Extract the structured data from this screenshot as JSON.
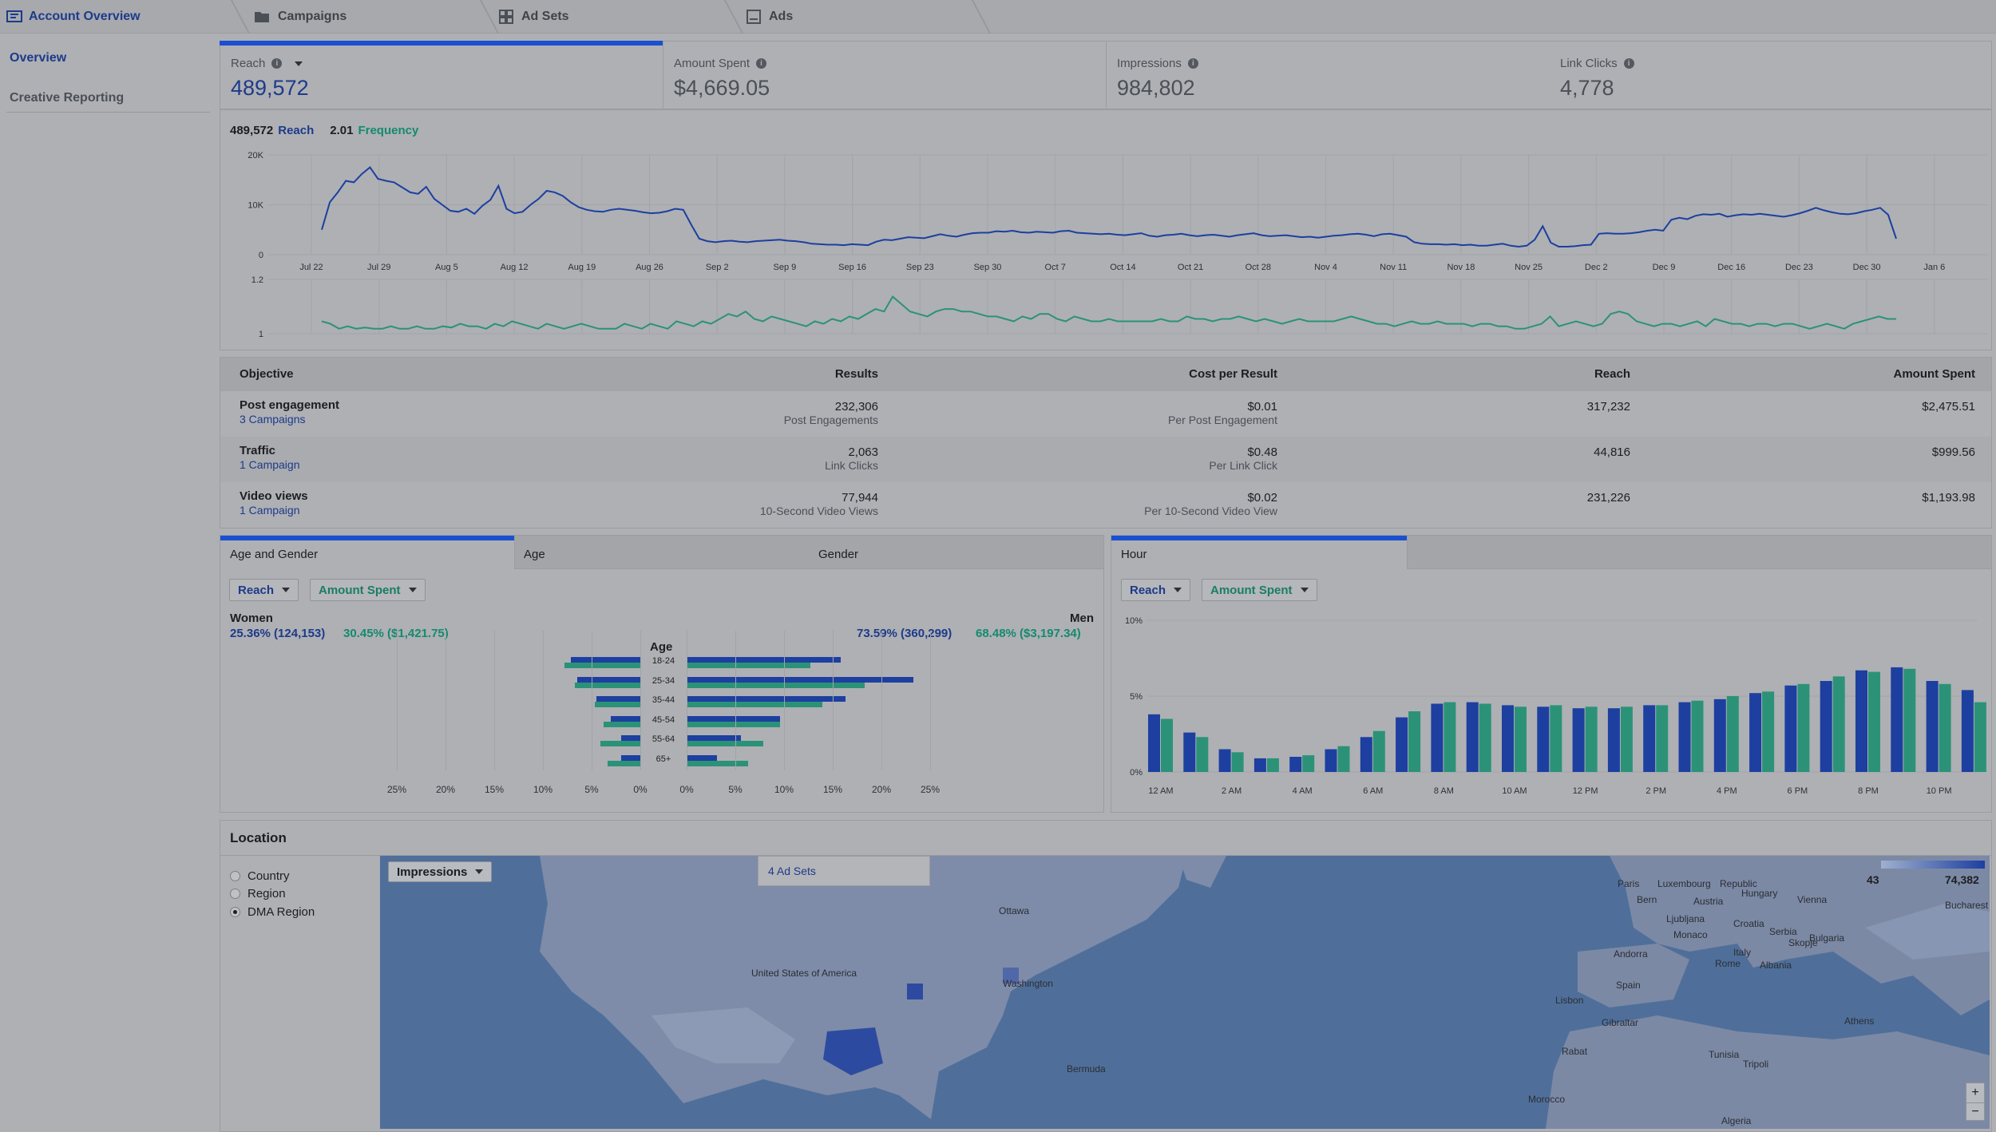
{
  "colors": {
    "reach": "#1e3a8a",
    "reach_bar": "#1d3fa0",
    "frequency": "#148a6f",
    "green_bar": "#2b9278",
    "accent_bar": "#1a4fd1"
  },
  "topnav": {
    "account_overview": "Account Overview",
    "tabs": [
      {
        "label": "Campaigns",
        "icon": "folder-icon"
      },
      {
        "label": "Ad Sets",
        "icon": "grid-icon"
      },
      {
        "label": "Ads",
        "icon": "ad-icon"
      }
    ]
  },
  "sidebar": {
    "items": [
      "Overview",
      "Creative Reporting"
    ]
  },
  "kpis": [
    {
      "label": "Reach",
      "value": "489,572"
    },
    {
      "label": "Amount Spent",
      "value": "$4,669.05"
    },
    {
      "label": "Impressions",
      "value": "984,802"
    },
    {
      "label": "Link Clicks",
      "value": "4,778"
    }
  ],
  "summary": {
    "reach_value": "489,572",
    "reach_label": "Reach",
    "freq_value": "2.01",
    "freq_label": "Frequency"
  },
  "chart_data": [
    {
      "type": "line",
      "series_label": "Reach",
      "x_ticks": [
        "Jul 22",
        "Jul 29",
        "Aug 5",
        "Aug 12",
        "Aug 19",
        "Aug 26",
        "Sep 2",
        "Sep 9",
        "Sep 16",
        "Sep 23",
        "Sep 30",
        "Oct 7",
        "Oct 14",
        "Oct 21",
        "Oct 28",
        "Nov 4",
        "Nov 11",
        "Nov 18",
        "Nov 25",
        "Dec 2",
        "Dec 9",
        "Dec 16",
        "Dec 23",
        "Dec 30",
        "Jan 6"
      ],
      "y_ticks": [
        "20K",
        "10K",
        "0"
      ],
      "ylim": [
        0,
        20000
      ],
      "values": [
        5000,
        10500,
        12500,
        14800,
        14500,
        16200,
        17500,
        15200,
        14800,
        14500,
        13500,
        12500,
        12200,
        13600,
        11200,
        10000,
        8800,
        8600,
        9200,
        8200,
        9800,
        11000,
        13800,
        9200,
        8300,
        8600,
        10000,
        11200,
        12800,
        12500,
        11800,
        10500,
        9500,
        9000,
        8700,
        8600,
        9000,
        9200,
        9000,
        8800,
        8500,
        8300,
        8400,
        8700,
        9200,
        9000,
        6000,
        3200,
        2700,
        2500,
        2700,
        2800,
        2600,
        2500,
        2700,
        2800,
        2900,
        3000,
        2800,
        2700,
        2500,
        2200,
        2100,
        2000,
        2000,
        1900,
        2100,
        2000,
        1900,
        2600,
        3000,
        2900,
        3200,
        3500,
        3400,
        3300,
        3700,
        4100,
        3800,
        3600,
        4000,
        4300,
        4400,
        4400,
        4700,
        4600,
        4800,
        4500,
        4400,
        4600,
        4500,
        4400,
        4700,
        4800,
        4400,
        4300,
        4200,
        4100,
        4200,
        4000,
        3900,
        4100,
        4300,
        3800,
        3600,
        3900,
        4000,
        4200,
        3900,
        3700,
        3900,
        4000,
        3800,
        3600,
        3900,
        4100,
        4300,
        3900,
        3700,
        3800,
        3900,
        3700,
        3500,
        3600,
        3400,
        3600,
        3800,
        3900,
        4100,
        4200,
        4000,
        3700,
        4100,
        4200,
        3900,
        3600,
        2500,
        2200,
        2100,
        2100,
        2000,
        2100,
        1900,
        2000,
        1800,
        1800,
        2000,
        2200,
        1800,
        1600,
        1800,
        3000,
        5700,
        2400,
        1600,
        1600,
        1700,
        1900,
        2000,
        4200,
        4300,
        4200,
        4200,
        4300,
        4500,
        4800,
        5000,
        4800,
        7000,
        7400,
        7100,
        7800,
        8100,
        8000,
        8200,
        7600,
        7900,
        8100,
        8000,
        8200,
        8000,
        7800,
        7600,
        7900,
        8300,
        8800,
        9400,
        8900,
        8500,
        8200,
        8100,
        8300,
        8700,
        9000,
        9400,
        8000,
        3200
      ]
    },
    {
      "type": "line",
      "series_label": "Frequency",
      "y_ticks": [
        "1.2",
        "1"
      ],
      "ylim": [
        0.98,
        1.2
      ],
      "values": [
        1.03,
        1.02,
        1.0,
        1.01,
        1.0,
        1.005,
        1.0,
        1.0,
        1.01,
        1.0,
        1.0,
        1.01,
        1.0,
        1.0,
        1.01,
        1.005,
        1.02,
        1.01,
        1.01,
        1.0,
        1.02,
        1.01,
        1.03,
        1.02,
        1.01,
        1.0,
        1.02,
        1.01,
        1.0,
        1.01,
        1.02,
        1.01,
        1.0,
        1.0,
        1.0,
        1.02,
        1.01,
        1.0,
        1.02,
        1.01,
        1.0,
        1.03,
        1.02,
        1.01,
        1.03,
        1.02,
        1.04,
        1.06,
        1.05,
        1.07,
        1.04,
        1.03,
        1.05,
        1.04,
        1.03,
        1.02,
        1.01,
        1.03,
        1.02,
        1.04,
        1.03,
        1.05,
        1.04,
        1.06,
        1.08,
        1.07,
        1.13,
        1.1,
        1.07,
        1.06,
        1.05,
        1.07,
        1.08,
        1.08,
        1.07,
        1.07,
        1.06,
        1.05,
        1.05,
        1.04,
        1.03,
        1.05,
        1.04,
        1.06,
        1.06,
        1.04,
        1.03,
        1.05,
        1.04,
        1.03,
        1.03,
        1.04,
        1.03,
        1.03,
        1.03,
        1.03,
        1.03,
        1.04,
        1.03,
        1.03,
        1.05,
        1.04,
        1.04,
        1.03,
        1.04,
        1.04,
        1.05,
        1.04,
        1.03,
        1.04,
        1.03,
        1.02,
        1.03,
        1.04,
        1.03,
        1.03,
        1.03,
        1.03,
        1.04,
        1.05,
        1.04,
        1.03,
        1.02,
        1.02,
        1.01,
        1.02,
        1.03,
        1.02,
        1.02,
        1.03,
        1.02,
        1.02,
        1.02,
        1.01,
        1.02,
        1.02,
        1.01,
        1.01,
        1.0,
        1.0,
        1.01,
        1.02,
        1.05,
        1.01,
        1.02,
        1.03,
        1.02,
        1.01,
        1.02,
        1.06,
        1.07,
        1.06,
        1.03,
        1.02,
        1.01,
        1.02,
        1.02,
        1.01,
        1.02,
        1.03,
        1.01,
        1.04,
        1.03,
        1.02,
        1.02,
        1.01,
        1.02,
        1.02,
        1.01,
        1.02,
        1.02,
        1.01,
        1.0,
        1.01,
        1.02,
        1.01,
        1.0,
        1.02,
        1.03,
        1.04,
        1.05,
        1.04,
        1.04
      ]
    },
    {
      "type": "bar",
      "orientation": "horizontal",
      "categories": [
        "18-24",
        "25-34",
        "35-44",
        "45-54",
        "55-64",
        "65+"
      ],
      "xlim": [
        0,
        25
      ],
      "x_ticks": [
        "25%",
        "20%",
        "15%",
        "10%",
        "5%",
        "0%",
        "0%",
        "5%",
        "10%",
        "15%",
        "20%",
        "25%"
      ],
      "women": {
        "reach_pct": [
          7.1,
          6.5,
          4.5,
          3.0,
          2.0,
          2.0
        ],
        "spent_pct": [
          7.8,
          6.7,
          4.7,
          3.8,
          4.1,
          3.4
        ]
      },
      "men": {
        "reach_pct": [
          15.8,
          23.3,
          16.3,
          9.6,
          5.6,
          3.1
        ],
        "spent_pct": [
          12.7,
          18.3,
          13.9,
          9.6,
          7.9,
          6.3
        ]
      }
    },
    {
      "type": "bar",
      "categories": [
        "12 AM",
        "1 AM",
        "2 AM",
        "3 AM",
        "4 AM",
        "5 AM",
        "6 AM",
        "7 AM",
        "8 AM",
        "9 AM",
        "10 AM",
        "11 AM",
        "12 PM",
        "1 PM",
        "2 PM",
        "3 PM",
        "4 PM",
        "5 PM",
        "6 PM",
        "7 PM",
        "8 PM",
        "9 PM",
        "10 PM",
        "11 PM"
      ],
      "x_ticks": [
        "12 AM",
        "2 AM",
        "4 AM",
        "6 AM",
        "8 AM",
        "10 AM",
        "12 PM",
        "2 PM",
        "4 PM",
        "6 PM",
        "8 PM",
        "10 PM"
      ],
      "y_ticks": [
        "10%",
        "5%",
        "0%"
      ],
      "ylim": [
        0,
        10
      ],
      "series": [
        {
          "name": "Reach",
          "values": [
            3.8,
            2.6,
            1.5,
            0.9,
            1.0,
            1.5,
            2.3,
            3.6,
            4.5,
            4.6,
            4.4,
            4.3,
            4.2,
            4.2,
            4.4,
            4.6,
            4.8,
            5.2,
            5.7,
            6.0,
            6.7,
            6.9,
            6.0,
            5.4
          ]
        },
        {
          "name": "Amount Spent",
          "values": [
            3.5,
            2.3,
            1.3,
            0.9,
            1.1,
            1.7,
            2.7,
            4.0,
            4.6,
            4.5,
            4.3,
            4.4,
            4.3,
            4.3,
            4.4,
            4.7,
            5.0,
            5.3,
            5.8,
            6.3,
            6.6,
            6.8,
            5.8,
            4.6
          ]
        }
      ]
    }
  ],
  "table": {
    "headers": [
      "Objective",
      "Results",
      "Cost per Result",
      "Reach",
      "Amount Spent"
    ],
    "rows": [
      {
        "objective": "Post engagement",
        "campaigns": "3 Campaigns",
        "results": "232,306",
        "results_sub": "Post Engagements",
        "cpr": "$0.01",
        "cpr_sub": "Per Post Engagement",
        "reach": "317,232",
        "spent": "$2,475.51"
      },
      {
        "objective": "Traffic",
        "campaigns": "1 Campaign",
        "results": "2,063",
        "results_sub": "Link Clicks",
        "cpr": "$0.48",
        "cpr_sub": "Per Link Click",
        "reach": "44,816",
        "spent": "$999.56"
      },
      {
        "objective": "Video views",
        "campaigns": "1 Campaign",
        "results": "77,944",
        "results_sub": "10-Second Video Views",
        "cpr": "$0.02",
        "cpr_sub": "Per 10-Second Video View",
        "reach": "231,226",
        "spent": "$1,193.98"
      }
    ]
  },
  "demographics": {
    "tabs": [
      "Age and Gender",
      "Age",
      "Gender"
    ],
    "dropdown_reach": "Reach",
    "dropdown_spent": "Amount Spent",
    "women_label": "Women",
    "women_reach": "25.36% (124,153)",
    "women_spent": "30.45% ($1,421.75)",
    "men_label": "Men",
    "men_reach": "73.59% (360,299)",
    "men_spent": "68.48% ($3,197.34)",
    "age_label": "Age"
  },
  "hourly": {
    "tab": "Hour",
    "dropdown_reach": "Reach",
    "dropdown_spent": "Amount Spent"
  },
  "location": {
    "title": "Location",
    "options": [
      "Country",
      "Region",
      "DMA Region"
    ],
    "selected": "DMA Region",
    "metric_dropdown": "Impressions",
    "popup": "4 Ad Sets",
    "legend_min": "43",
    "legend_max": "74,382",
    "zoom_in": "+",
    "zoom_out": "−",
    "place_labels": [
      "Ottawa",
      "United States of America",
      "Washington",
      "Bermuda",
      "Paris",
      "Luxembourg",
      "Republic",
      "Bern",
      "Austria",
      "Hungary",
      "Ljubljana",
      "Monaco",
      "Croatia",
      "Serbia",
      "Bulgaria",
      "Andorra",
      "Italy",
      "Skopje",
      "Albania",
      "Rome",
      "Spain",
      "Lisbon",
      "Gibraltar",
      "Athens",
      "Tunisia",
      "Rabat",
      "Tripoli",
      "Morocco",
      "Algeria",
      "Bucharest",
      "Vienna"
    ]
  }
}
